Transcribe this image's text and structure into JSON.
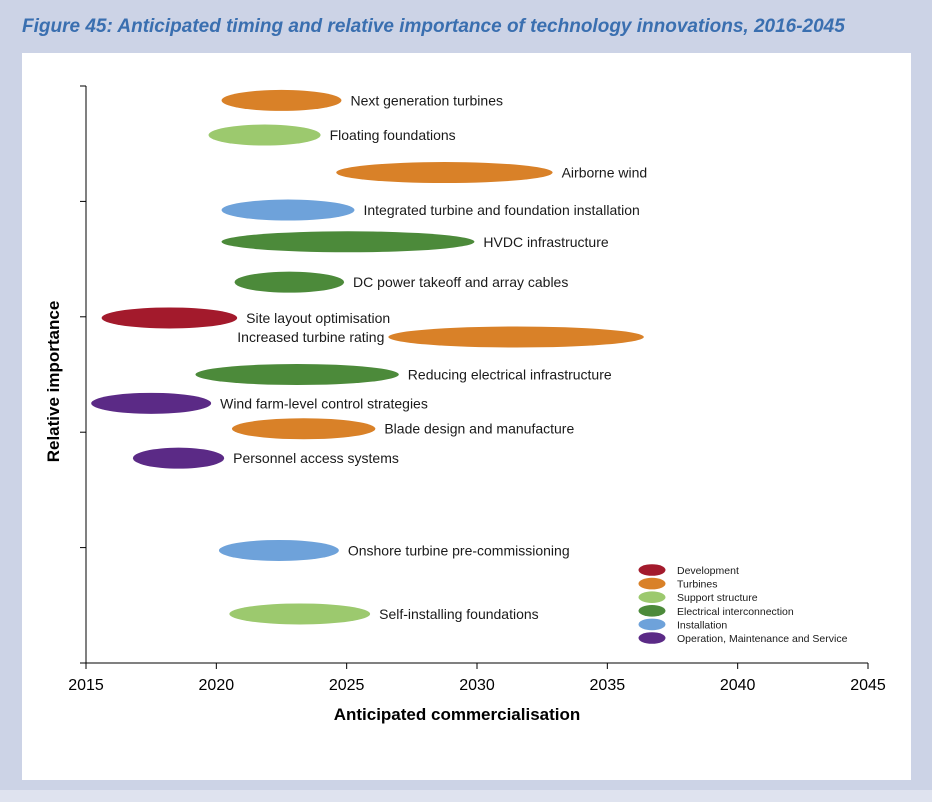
{
  "figure": {
    "title": "Figure 45: Anticipated timing and relative importance of technology innovations, 2016-2045"
  },
  "chart_data": {
    "type": "scatter",
    "title": "Figure 45: Anticipated timing and relative importance of technology innovations, 2016-2045",
    "xlabel": "Anticipated commercialisation",
    "ylabel": "Relative  importance",
    "xlim": [
      2015,
      2045
    ],
    "xticks": [
      2015,
      2020,
      2025,
      2030,
      2035,
      2040,
      2045
    ],
    "ylim": [
      0,
      100
    ],
    "y_tick_labels_shown": false,
    "grid": false,
    "legend_position": "bottom-right",
    "categories": [
      {
        "key": "development",
        "name": "Development",
        "color": "#a31a2c"
      },
      {
        "key": "turbines",
        "name": "Turbines",
        "color": "#d98128"
      },
      {
        "key": "support",
        "name": "Support structure",
        "color": "#9cc96e"
      },
      {
        "key": "electrical",
        "name": "Electrical interconnection",
        "color": "#4c8a3a"
      },
      {
        "key": "installation",
        "name": "Installation",
        "color": "#6ea2da"
      },
      {
        "key": "oms",
        "name": "Operation, Maintenance and Service",
        "color": "#5b2a86"
      }
    ],
    "innovations": [
      {
        "label": "Next generation turbines",
        "category": "turbines",
        "start": 2020.2,
        "end": 2024.8,
        "importance": 97.5,
        "label_side": "right"
      },
      {
        "label": "Floating foundations",
        "category": "support",
        "start": 2019.7,
        "end": 2024.0,
        "importance": 91.5,
        "label_side": "right"
      },
      {
        "label": "Airborne wind",
        "category": "turbines",
        "start": 2024.6,
        "end": 2032.9,
        "importance": 85.0,
        "label_side": "right"
      },
      {
        "label": "Integrated turbine and foundation  installation",
        "category": "installation",
        "start": 2020.2,
        "end": 2025.3,
        "importance": 78.5,
        "label_side": "right"
      },
      {
        "label": "HVDC infrastructure",
        "category": "electrical",
        "start": 2020.2,
        "end": 2029.9,
        "importance": 73.0,
        "label_side": "right"
      },
      {
        "label": "DC power takeoff and array cables",
        "category": "electrical",
        "start": 2020.7,
        "end": 2024.9,
        "importance": 66.0,
        "label_side": "right"
      },
      {
        "label": "Site layout optimisation",
        "category": "development",
        "start": 2015.6,
        "end": 2020.8,
        "importance": 59.8,
        "label_side": "right"
      },
      {
        "label": "Increased turbine rating",
        "category": "turbines",
        "start": 2026.6,
        "end": 2036.4,
        "importance": 56.5,
        "label_side": "left"
      },
      {
        "label": "Reducing electrical infrastructure",
        "category": "electrical",
        "start": 2019.2,
        "end": 2027.0,
        "importance": 50.0,
        "label_side": "right"
      },
      {
        "label": "Wind farm-level control strategies",
        "category": "oms",
        "start": 2015.2,
        "end": 2019.8,
        "importance": 45.0,
        "label_side": "right"
      },
      {
        "label": "Blade design and manufacture",
        "category": "turbines",
        "start": 2020.6,
        "end": 2026.1,
        "importance": 40.6,
        "label_side": "right"
      },
      {
        "label": "Personnel access systems",
        "category": "oms",
        "start": 2016.8,
        "end": 2020.3,
        "importance": 35.5,
        "label_side": "right"
      },
      {
        "label": "Onshore turbine pre-commissioning",
        "category": "installation",
        "start": 2020.1,
        "end": 2024.7,
        "importance": 19.5,
        "label_side": "right"
      },
      {
        "label": "Self-installing foundations",
        "category": "support",
        "start": 2020.5,
        "end": 2025.9,
        "importance": 8.5,
        "label_side": "right"
      }
    ]
  }
}
